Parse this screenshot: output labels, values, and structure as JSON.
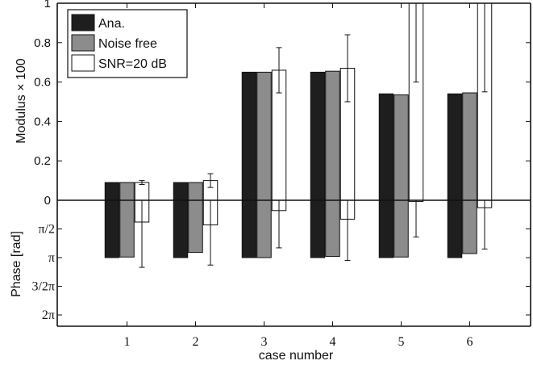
{
  "chart_data": {
    "type": "bar",
    "xlabel": "case number",
    "categories": [
      "1",
      "2",
      "3",
      "4",
      "5",
      "6"
    ],
    "legend": {
      "placement": "top-left",
      "entries": [
        "Ana.",
        "Noise free",
        "SNR=20 dB"
      ]
    },
    "colors": {
      "Ana.": "#1e1e1e",
      "Noise free": "#8c8c8c",
      "SNR=20 dB": "#ffffff"
    },
    "modulus": {
      "ylabel": "Modulus × 100",
      "ylim": [
        0,
        1
      ],
      "yticks": [
        "0",
        "0.2",
        "0.4",
        "0.6",
        "0.8",
        "1"
      ],
      "series": [
        {
          "name": "Ana.",
          "values": [
            0.09,
            0.09,
            0.65,
            0.65,
            0.54,
            0.54
          ]
        },
        {
          "name": "Noise free",
          "values": [
            0.09,
            0.09,
            0.65,
            0.655,
            0.535,
            0.545
          ]
        },
        {
          "name": "SNR=20 dB",
          "values": [
            0.09,
            0.1,
            0.66,
            0.67,
            1.05,
            1.05
          ],
          "error": [
            0.01,
            0.035,
            0.115,
            0.17,
            0.45,
            0.5
          ]
        }
      ]
    },
    "phase": {
      "ylabel": "Phase [rad]",
      "yticks": [
        "π/2",
        "π",
        "3/2π",
        "2π"
      ],
      "ytick_values_in_pi": [
        0.5,
        1,
        1.5,
        2
      ],
      "ylim_in_pi": [
        0,
        2.2
      ],
      "series": [
        {
          "name": "Ana.",
          "values_in_pi": [
            1.0,
            1.0,
            1.0,
            1.0,
            1.0,
            1.0
          ]
        },
        {
          "name": "Noise free",
          "values_in_pi": [
            0.99,
            0.91,
            1.0,
            0.98,
            0.99,
            0.93
          ]
        },
        {
          "name": "SNR=20 dB",
          "values_in_pi": [
            0.38,
            0.43,
            0.18,
            0.33,
            0.02,
            0.13
          ],
          "error_in_pi": [
            0.79,
            0.7,
            0.65,
            0.72,
            0.62,
            0.72
          ]
        }
      ]
    }
  }
}
